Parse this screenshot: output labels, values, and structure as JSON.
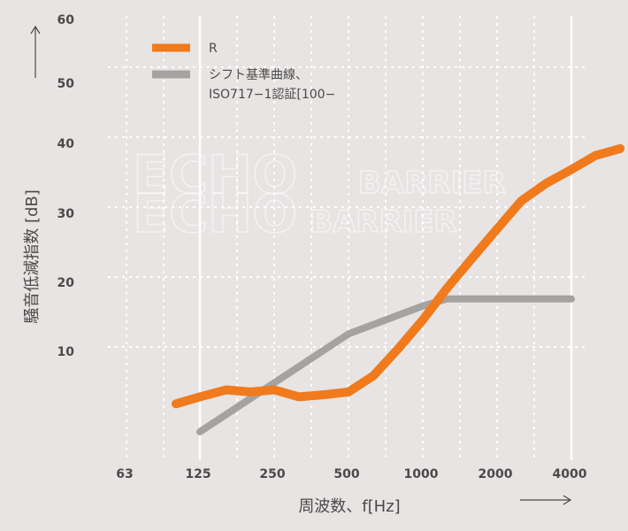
{
  "chart_data": {
    "type": "line",
    "xlabel": "周波数、f[Hz]",
    "ylabel": "騒音低減指数 [dB]",
    "x_ticks": [
      "63",
      "125",
      "250",
      "500",
      "1000",
      "2000",
      "4000"
    ],
    "y_ticks": [
      "10",
      "20",
      "30",
      "40",
      "50",
      "60"
    ],
    "ylim": [
      0,
      60
    ],
    "grid": true,
    "legend_position": "top-left",
    "watermark": [
      "ECHO",
      "BARRIER",
      "ECHO",
      "BARRIER"
    ],
    "series": [
      {
        "name": "R",
        "color": "#f07a1c",
        "x": [
          100,
          125,
          160,
          200,
          250,
          315,
          400,
          500,
          630,
          800,
          1000,
          1250,
          1600,
          2000,
          2500,
          3150,
          4000,
          5000,
          6300
        ],
        "y": [
          3,
          4,
          5,
          4.7,
          5,
          4,
          4.3,
          4.7,
          7,
          11,
          15,
          19.5,
          24,
          28,
          32,
          34.5,
          36.5,
          38.5,
          39.5
        ]
      },
      {
        "name_lines": [
          "シフト基準曲線、",
          "ISO717−1認証[100−"
        ],
        "color": "#a5a3a2",
        "x": [
          125,
          250,
          500,
          1000,
          1250,
          2000,
          4000
        ],
        "y": [
          -1,
          6,
          13,
          17,
          18,
          18,
          18
        ]
      }
    ]
  }
}
